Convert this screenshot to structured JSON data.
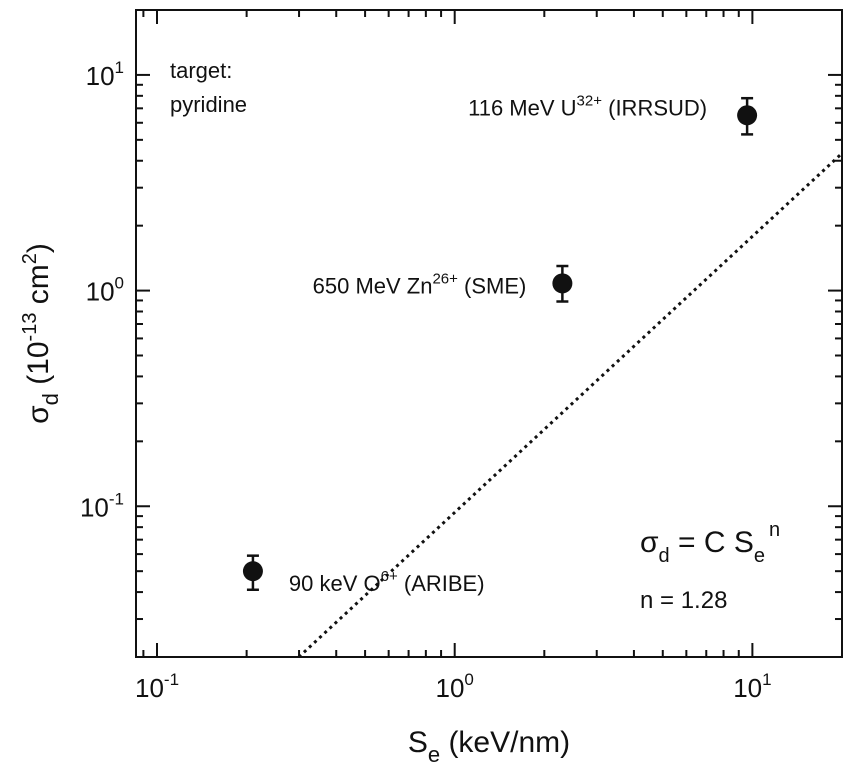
{
  "chart_data": {
    "type": "scatter",
    "x_scale": "log",
    "y_scale": "log",
    "xlim": [
      0.085,
      20
    ],
    "ylim": [
      0.02,
      20
    ],
    "grid": false,
    "xlabel": {
      "base": "S",
      "sub": "e",
      "rest": " (keV/nm)"
    },
    "ylabel": {
      "base": "σ",
      "sub": "d",
      "rest": " (10",
      "sup": "-13",
      "rest2": " cm",
      "sup2": "2",
      "end": ")"
    },
    "x_ticks": [
      {
        "value": 0.1,
        "base": "10",
        "exp": "-1"
      },
      {
        "value": 1,
        "base": "10",
        "exp": "0"
      },
      {
        "value": 10,
        "base": "10",
        "exp": "1"
      }
    ],
    "y_ticks": [
      {
        "value": 0.1,
        "base": "10",
        "exp": "-1"
      },
      {
        "value": 1,
        "base": "10",
        "exp": "0"
      },
      {
        "value": 10,
        "base": "10",
        "exp": "1"
      }
    ],
    "points": [
      {
        "x": 0.21,
        "y": 0.05,
        "err_low": 0.041,
        "err_high": 0.059,
        "label": {
          "pre": "90 keV O",
          "sup": "6+",
          "post": " (ARIBE)"
        }
      },
      {
        "x": 2.3,
        "y": 1.08,
        "err_low": 0.89,
        "err_high": 1.3,
        "label": {
          "pre": "650 MeV Zn",
          "sup": "26+",
          "post": " (SME)"
        }
      },
      {
        "x": 9.6,
        "y": 6.5,
        "err_low": 5.3,
        "err_high": 7.8,
        "label": {
          "pre": "116 MeV U",
          "sup": "32+",
          "post": " (IRRSUD)"
        }
      }
    ],
    "fit_line": {
      "n": 1.28,
      "x_range": [
        0.1,
        20
      ],
      "y_at_x1": 0.0936,
      "style": "dotted"
    },
    "annotations": {
      "target_line1": "target:",
      "target_line2": "pyridine",
      "formula": {
        "lhs": "σ",
        "lhs_sub": "d",
        "eq": " = C S",
        "rhs_sub": "e",
        "rhs_sup": "n"
      },
      "n_value": "n = 1.28"
    }
  }
}
